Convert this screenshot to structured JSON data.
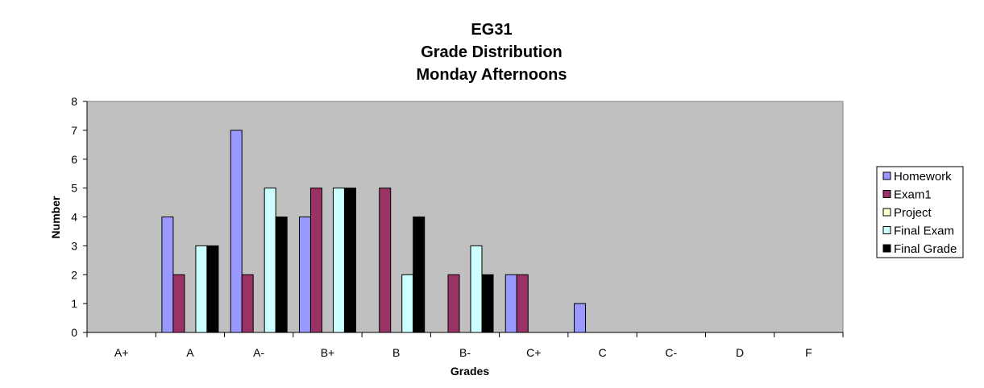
{
  "chart_data": {
    "type": "bar",
    "title": [
      "EG31",
      "Grade Distribution",
      "Monday Afternoons"
    ],
    "xlabel": "Grades",
    "ylabel": "Number",
    "ylim": [
      0,
      8
    ],
    "yticks": [
      "0",
      "1",
      "2",
      "3",
      "4",
      "5",
      "6",
      "7",
      "8"
    ],
    "grid": false,
    "legend_position": "right",
    "plot_background": "#C0C0C0",
    "categories": [
      "A+",
      "A",
      "A-",
      "B+",
      "B",
      "B-",
      "C+",
      "C",
      "C-",
      "D",
      "F"
    ],
    "series": [
      {
        "name": "Homework",
        "color": "#9999FF",
        "values": [
          0,
          4,
          7,
          4,
          0,
          0,
          2,
          1,
          0,
          0,
          0
        ]
      },
      {
        "name": "Exam1",
        "color": "#993366",
        "values": [
          0,
          2,
          2,
          5,
          5,
          2,
          2,
          0,
          0,
          0,
          0
        ]
      },
      {
        "name": "Project",
        "color": "#FFFFCC",
        "values": [
          0,
          0,
          0,
          0,
          0,
          0,
          0,
          0,
          0,
          0,
          0
        ]
      },
      {
        "name": "Final Exam",
        "color": "#CCFFFF",
        "values": [
          0,
          3,
          5,
          5,
          2,
          3,
          0,
          0,
          0,
          0,
          0
        ]
      },
      {
        "name": "Final Grade",
        "color": "#000000",
        "values": [
          0,
          3,
          4,
          5,
          4,
          2,
          0,
          0,
          0,
          0,
          0
        ]
      }
    ]
  }
}
